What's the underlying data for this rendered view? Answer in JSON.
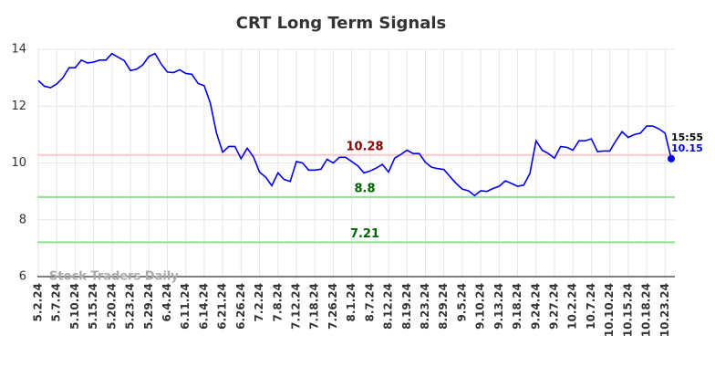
{
  "chart_data": {
    "type": "line",
    "title": "CRT Long Term Signals",
    "watermark": "Stock Traders Daily",
    "categories": [
      "5.2.24",
      null,
      null,
      "5.7.24",
      null,
      null,
      "5.10.24",
      null,
      null,
      "5.15.24",
      null,
      null,
      "5.20.24",
      null,
      null,
      "5.23.24",
      null,
      null,
      "5.29.24",
      null,
      null,
      "6.4.24",
      null,
      null,
      "6.11.24",
      null,
      null,
      "6.14.24",
      null,
      null,
      "6.21.24",
      null,
      null,
      "6.26.24",
      null,
      null,
      "7.2.24",
      null,
      null,
      "7.8.24",
      null,
      null,
      "7.12.24",
      null,
      null,
      "7.18.24",
      null,
      null,
      "7.26.24",
      null,
      null,
      "8.1.24",
      null,
      null,
      "8.7.24",
      null,
      null,
      "8.12.24",
      null,
      null,
      "8.19.24",
      null,
      null,
      "8.23.24",
      null,
      null,
      "8.29.24",
      null,
      null,
      "9.5.24",
      null,
      null,
      "9.10.24",
      null,
      null,
      "9.13.24",
      null,
      null,
      "9.18.24",
      null,
      null,
      "9.24.24",
      null,
      null,
      "9.27.24",
      null,
      null,
      "10.2.24",
      null,
      null,
      "10.7.24",
      null,
      null,
      "10.10.24",
      null,
      null,
      "10.15.24",
      null,
      null,
      "10.18.24",
      null,
      null,
      "10.23.24",
      null
    ],
    "values": [
      12.9,
      12.7,
      12.65,
      12.78,
      13.0,
      13.35,
      13.35,
      13.62,
      13.52,
      13.55,
      13.62,
      13.62,
      13.85,
      13.72,
      13.6,
      13.25,
      13.3,
      13.45,
      13.75,
      13.85,
      13.48,
      13.2,
      13.18,
      13.28,
      13.15,
      13.12,
      12.8,
      12.72,
      12.1,
      11.05,
      10.38,
      10.58,
      10.58,
      10.15,
      10.52,
      10.22,
      9.68,
      9.5,
      9.2,
      9.65,
      9.42,
      9.35,
      10.05,
      10.0,
      9.75,
      9.75,
      9.78,
      10.13,
      10.0,
      10.2,
      10.2,
      10.05,
      9.9,
      9.65,
      9.72,
      9.82,
      9.95,
      9.68,
      10.17,
      10.3,
      10.45,
      10.33,
      10.33,
      10.02,
      9.85,
      9.8,
      9.77,
      9.52,
      9.28,
      9.08,
      9.02,
      8.85,
      9.02,
      9.0,
      9.1,
      9.18,
      9.37,
      9.28,
      9.18,
      9.22,
      9.63,
      10.78,
      10.45,
      10.33,
      10.17,
      10.58,
      10.55,
      10.45,
      10.78,
      10.78,
      10.85,
      10.4,
      10.42,
      10.42,
      10.78,
      11.1,
      10.9,
      11.0,
      11.05,
      11.3,
      11.3,
      11.2,
      11.05,
      10.15
    ],
    "color": "#0000ee",
    "last_time": "15:55",
    "hlines": [
      {
        "value": 10.28,
        "line_color": "#ffc8c8",
        "label_color": "#8b0000"
      },
      {
        "value": 8.8,
        "line_color": "#90e090",
        "label_color": "#006400"
      },
      {
        "value": 7.21,
        "line_color": "#90e090",
        "label_color": "#006400"
      }
    ],
    "ylim": [
      6,
      14
    ],
    "yticks": [
      6,
      8,
      10,
      12,
      14
    ],
    "grid": true
  }
}
